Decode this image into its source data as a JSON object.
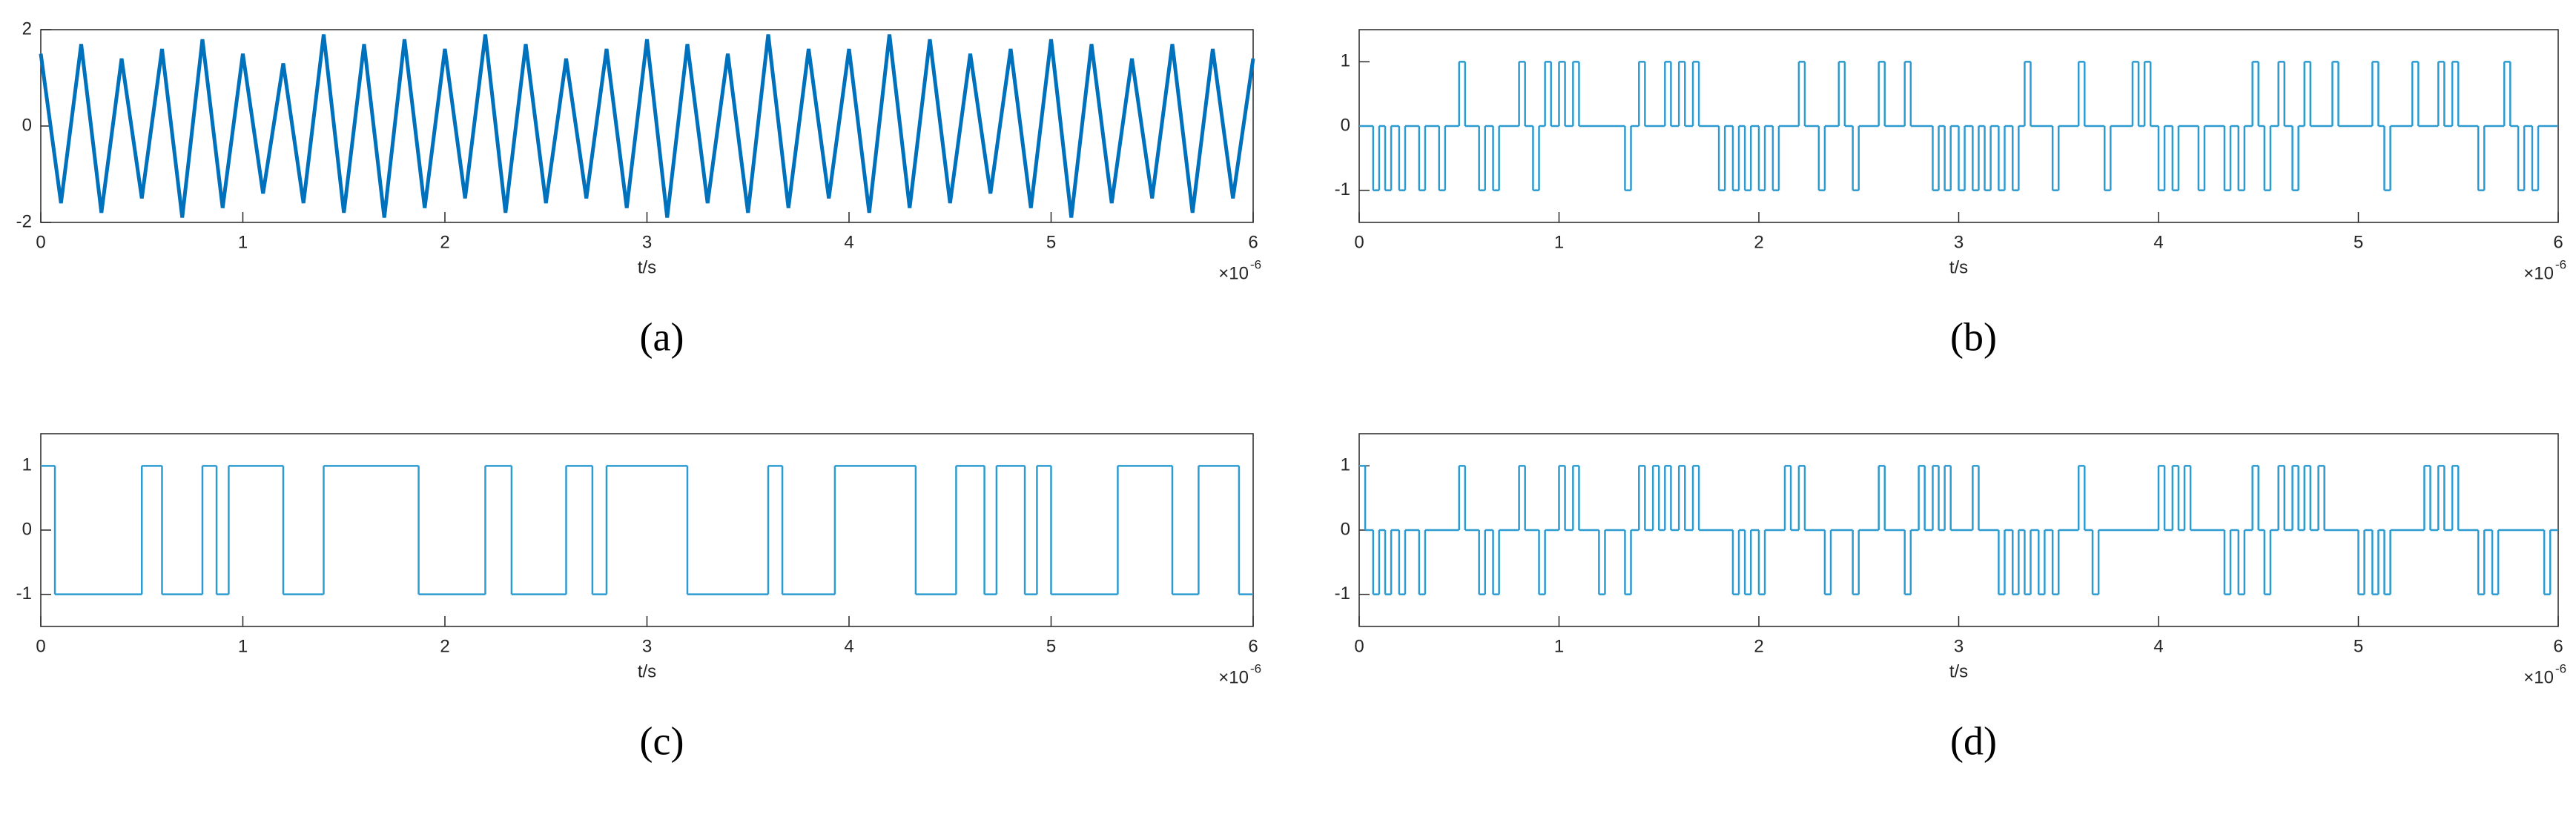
{
  "chart_data": [
    {
      "type": "line",
      "caption": "(a)",
      "xlabel": "t/s",
      "x_scale_base": "×10",
      "x_scale_exponent": "-6",
      "color": "#0072bd",
      "xlim": [
        0,
        6
      ],
      "xticks": [
        0,
        1,
        2,
        3,
        4,
        5,
        6
      ],
      "ylim": [
        -2,
        2
      ],
      "yticks": [
        -2,
        0,
        2
      ],
      "x": [
        0,
        0.1,
        0.2,
        0.3,
        0.4,
        0.5,
        0.6,
        0.7,
        0.8,
        0.9,
        1,
        1.1,
        1.2,
        1.3,
        1.4,
        1.5,
        1.6,
        1.7,
        1.8,
        1.9,
        2,
        2.1,
        2.2,
        2.3,
        2.4,
        2.5,
        2.6,
        2.7,
        2.8,
        2.9,
        3,
        3.1,
        3.2,
        3.3,
        3.4,
        3.5,
        3.6,
        3.7,
        3.8,
        3.9,
        4,
        4.1,
        4.2,
        4.3,
        4.4,
        4.5,
        4.6,
        4.7,
        4.8,
        4.9,
        5,
        5.1,
        5.2,
        5.3,
        5.4,
        5.5,
        5.6,
        5.7,
        5.8,
        5.9,
        6
      ],
      "values": [
        1.5,
        -1.6,
        1.7,
        -1.8,
        1.4,
        -1.5,
        1.6,
        -1.9,
        1.8,
        -1.7,
        1.5,
        -1.4,
        1.3,
        -1.6,
        1.9,
        -1.8,
        1.7,
        -1.9,
        1.8,
        -1.7,
        1.6,
        -1.5,
        1.9,
        -1.8,
        1.7,
        -1.6,
        1.4,
        -1.5,
        1.6,
        -1.7,
        1.8,
        -1.9,
        1.7,
        -1.6,
        1.5,
        -1.8,
        1.9,
        -1.7,
        1.6,
        -1.5,
        1.6,
        -1.8,
        1.9,
        -1.7,
        1.8,
        -1.6,
        1.5,
        -1.4,
        1.6,
        -1.7,
        1.8,
        -1.9,
        1.7,
        -1.6,
        1.4,
        -1.5,
        1.7,
        -1.8,
        1.6,
        -1.5,
        1.4
      ]
    },
    {
      "type": "step",
      "caption": "(b)",
      "xlabel": "t/s",
      "x_scale_base": "×10",
      "x_scale_exponent": "-6",
      "color": "#2e9bd0",
      "xlim": [
        0,
        6
      ],
      "xticks": [
        0,
        1,
        2,
        3,
        4,
        5,
        6
      ],
      "ylim": [
        -1.5,
        1.5
      ],
      "yticks": [
        -1,
        0,
        1
      ],
      "x": [
        0,
        0.07,
        0.1,
        0.13,
        0.16,
        0.2,
        0.23,
        0.3,
        0.33,
        0.4,
        0.43,
        0.5,
        0.53,
        0.6,
        0.63,
        0.67,
        0.7,
        0.8,
        0.83,
        0.87,
        0.9,
        0.93,
        0.96,
        1.0,
        1.03,
        1.07,
        1.1,
        1.33,
        1.36,
        1.4,
        1.43,
        1.53,
        1.56,
        1.6,
        1.63,
        1.67,
        1.7,
        1.8,
        1.83,
        1.87,
        1.9,
        1.93,
        1.96,
        2.0,
        2.03,
        2.07,
        2.1,
        2.2,
        2.23,
        2.3,
        2.33,
        2.4,
        2.43,
        2.47,
        2.5,
        2.6,
        2.63,
        2.73,
        2.76,
        2.87,
        2.9,
        2.93,
        2.96,
        3.0,
        3.03,
        3.07,
        3.1,
        3.13,
        3.16,
        3.2,
        3.23,
        3.27,
        3.3,
        3.33,
        3.36,
        3.47,
        3.5,
        3.6,
        3.63,
        3.73,
        3.76,
        3.87,
        3.9,
        3.93,
        3.96,
        4.0,
        4.03,
        4.07,
        4.1,
        4.2,
        4.23,
        4.33,
        4.36,
        4.4,
        4.43,
        4.47,
        4.5,
        4.53,
        4.56,
        4.6,
        4.63,
        4.67,
        4.7,
        4.73,
        4.76,
        4.87,
        4.9,
        5.07,
        5.1,
        5.13,
        5.16,
        5.27,
        5.3,
        5.4,
        5.43,
        5.47,
        5.5,
        5.6,
        5.63,
        5.73,
        5.76,
        5.8,
        5.83,
        5.87,
        5.9
      ],
      "values": [
        0,
        -1,
        0,
        -1,
        0,
        -1,
        0,
        -1,
        0,
        -1,
        0,
        1,
        0,
        -1,
        0,
        -1,
        0,
        1,
        0,
        -1,
        0,
        1,
        0,
        1,
        0,
        1,
        0,
        -1,
        0,
        1,
        0,
        1,
        0,
        1,
        0,
        1,
        0,
        -1,
        0,
        -1,
        0,
        -1,
        0,
        -1,
        0,
        -1,
        0,
        1,
        0,
        -1,
        0,
        1,
        0,
        -1,
        0,
        1,
        0,
        1,
        0,
        -1,
        0,
        -1,
        0,
        -1,
        0,
        -1,
        0,
        -1,
        0,
        -1,
        0,
        -1,
        0,
        1,
        0,
        -1,
        0,
        1,
        0,
        -1,
        0,
        1,
        0,
        1,
        0,
        -1,
        0,
        -1,
        0,
        -1,
        0,
        -1,
        0,
        -1,
        0,
        1,
        0,
        -1,
        0,
        1,
        0,
        -1,
        0,
        1,
        0,
        1,
        0,
        1,
        0,
        -1,
        0,
        1,
        0,
        1,
        0,
        1,
        0,
        -1,
        0,
        1,
        0,
        -1,
        0,
        -1,
        0
      ]
    },
    {
      "type": "step",
      "caption": "(c)",
      "xlabel": "t/s",
      "x_scale_base": "×10",
      "x_scale_exponent": "-6",
      "color": "#2e9bd0",
      "xlim": [
        0,
        6
      ],
      "xticks": [
        0,
        1,
        2,
        3,
        4,
        5,
        6
      ],
      "ylim": [
        -1.5,
        1.5
      ],
      "yticks": [
        -1,
        0,
        1
      ],
      "x": [
        0,
        0.07,
        0.5,
        0.6,
        0.8,
        0.87,
        0.93,
        1.2,
        1.4,
        1.87,
        2.2,
        2.33,
        2.6,
        2.73,
        2.8,
        3.2,
        3.6,
        3.67,
        3.93,
        4.33,
        4.53,
        4.67,
        4.73,
        4.87,
        4.93,
        5.0,
        5.33,
        5.6,
        5.73,
        5.93
      ],
      "values": [
        1,
        -1,
        1,
        -1,
        1,
        -1,
        1,
        -1,
        1,
        -1,
        1,
        -1,
        1,
        -1,
        1,
        -1,
        1,
        -1,
        1,
        -1,
        1,
        -1,
        1,
        -1,
        1,
        -1,
        1,
        -1,
        1,
        -1
      ]
    },
    {
      "type": "step",
      "caption": "(d)",
      "xlabel": "t/s",
      "x_scale_base": "×10",
      "x_scale_exponent": "-6",
      "color": "#2e9bd0",
      "xlim": [
        0,
        6
      ],
      "xticks": [
        0,
        1,
        2,
        3,
        4,
        5,
        6
      ],
      "ylim": [
        -1.5,
        1.5
      ],
      "yticks": [
        -1,
        0,
        1
      ],
      "x": [
        0,
        0.03,
        0.07,
        0.1,
        0.13,
        0.16,
        0.2,
        0.23,
        0.3,
        0.33,
        0.5,
        0.53,
        0.6,
        0.63,
        0.67,
        0.7,
        0.8,
        0.83,
        0.9,
        0.93,
        1.0,
        1.03,
        1.07,
        1.1,
        1.2,
        1.23,
        1.33,
        1.36,
        1.4,
        1.43,
        1.47,
        1.5,
        1.53,
        1.56,
        1.6,
        1.63,
        1.67,
        1.7,
        1.87,
        1.9,
        1.93,
        1.96,
        2.0,
        2.03,
        2.13,
        2.16,
        2.2,
        2.23,
        2.33,
        2.36,
        2.47,
        2.5,
        2.6,
        2.63,
        2.73,
        2.76,
        2.8,
        2.83,
        2.87,
        2.9,
        2.93,
        2.96,
        3.07,
        3.1,
        3.2,
        3.23,
        3.27,
        3.3,
        3.33,
        3.36,
        3.4,
        3.43,
        3.47,
        3.5,
        3.6,
        3.63,
        3.67,
        3.7,
        4.0,
        4.03,
        4.07,
        4.1,
        4.13,
        4.16,
        4.33,
        4.36,
        4.4,
        4.43,
        4.47,
        4.5,
        4.53,
        4.56,
        4.6,
        4.63,
        4.67,
        4.7,
        4.73,
        4.76,
        4.8,
        4.83,
        5.0,
        5.03,
        5.07,
        5.1,
        5.13,
        5.16,
        5.33,
        5.36,
        5.4,
        5.43,
        5.47,
        5.5,
        5.6,
        5.63,
        5.67,
        5.7,
        5.93,
        5.96
      ],
      "values": [
        1,
        0,
        -1,
        0,
        -1,
        0,
        -1,
        0,
        -1,
        0,
        1,
        0,
        -1,
        0,
        -1,
        0,
        1,
        0,
        -1,
        0,
        1,
        0,
        1,
        0,
        -1,
        0,
        -1,
        0,
        1,
        0,
        1,
        0,
        1,
        0,
        1,
        0,
        1,
        0,
        -1,
        0,
        -1,
        0,
        -1,
        0,
        1,
        0,
        1,
        0,
        -1,
        0,
        -1,
        0,
        1,
        0,
        -1,
        0,
        1,
        0,
        1,
        0,
        1,
        0,
        1,
        0,
        -1,
        0,
        -1,
        0,
        -1,
        0,
        -1,
        0,
        -1,
        0,
        1,
        0,
        -1,
        0,
        1,
        0,
        1,
        0,
        1,
        0,
        -1,
        0,
        -1,
        0,
        1,
        0,
        -1,
        0,
        1,
        0,
        1,
        0,
        1,
        0,
        1,
        0,
        -1,
        0,
        -1,
        0,
        -1,
        0,
        1,
        0,
        1,
        0,
        1,
        0,
        -1,
        0,
        -1,
        0,
        -1,
        0
      ]
    }
  ]
}
